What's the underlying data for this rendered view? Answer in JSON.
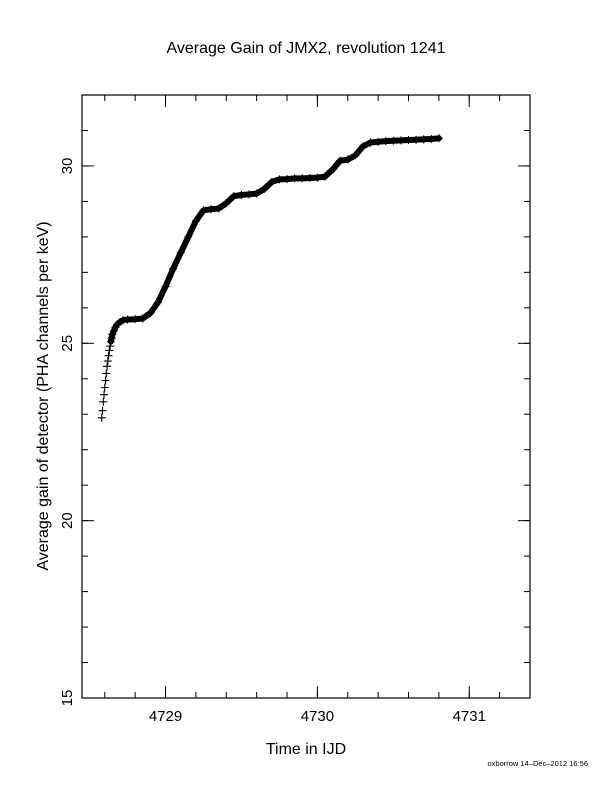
{
  "chart_data": {
    "type": "scatter",
    "title": "Average Gain of JMX2, revolution 1241",
    "xlabel": "Time in IJD",
    "ylabel": "Average gain of detector (PHA channels per keV)",
    "footer": "oxborrow 14–Dec–2012 16:56",
    "xlim": [
      4728.45,
      4731.4
    ],
    "ylim": [
      15,
      32
    ],
    "xticks": [
      4729,
      4730,
      4731
    ],
    "xtick_labels": [
      "4729",
      "4730",
      "4731"
    ],
    "yticks": [
      15,
      20,
      25,
      30
    ],
    "ytick_labels": [
      "15",
      "20",
      "25",
      "30"
    ],
    "x_minor_step": 0.2,
    "y_minor_step": 1,
    "grid": false,
    "marker": "+",
    "color": "#000000",
    "series": [
      {
        "points": [
          [
            4728.58,
            22.9
          ],
          [
            4728.585,
            23.1
          ],
          [
            4728.59,
            23.35
          ],
          [
            4728.595,
            23.55
          ],
          [
            4728.6,
            23.75
          ],
          [
            4728.605,
            23.95
          ],
          [
            4728.61,
            24.15
          ],
          [
            4728.615,
            24.35
          ],
          [
            4728.62,
            24.5
          ],
          [
            4728.625,
            24.65
          ],
          [
            4728.63,
            24.8
          ],
          [
            4728.635,
            24.92
          ],
          [
            4728.64,
            25.05
          ],
          [
            4728.645,
            25.15
          ],
          [
            4728.65,
            25.25
          ],
          [
            4728.66,
            25.35
          ],
          [
            4728.67,
            25.45
          ],
          [
            4728.68,
            25.52
          ],
          [
            4728.7,
            25.6
          ],
          [
            4728.72,
            25.65
          ],
          [
            4728.75,
            25.67
          ],
          [
            4728.8,
            25.68
          ],
          [
            4728.85,
            25.7
          ],
          [
            4728.9,
            25.85
          ],
          [
            4728.95,
            26.15
          ],
          [
            4729.0,
            26.6
          ],
          [
            4729.05,
            27.1
          ],
          [
            4729.1,
            27.55
          ],
          [
            4729.15,
            28.0
          ],
          [
            4729.2,
            28.45
          ],
          [
            4729.25,
            28.75
          ],
          [
            4729.3,
            28.78
          ],
          [
            4729.35,
            28.8
          ],
          [
            4729.4,
            28.95
          ],
          [
            4729.45,
            29.15
          ],
          [
            4729.5,
            29.18
          ],
          [
            4729.55,
            29.2
          ],
          [
            4729.6,
            29.22
          ],
          [
            4729.65,
            29.35
          ],
          [
            4729.7,
            29.55
          ],
          [
            4729.75,
            29.62
          ],
          [
            4729.8,
            29.63
          ],
          [
            4729.85,
            29.65
          ],
          [
            4729.9,
            29.65
          ],
          [
            4729.95,
            29.66
          ],
          [
            4730.0,
            29.67
          ],
          [
            4730.05,
            29.7
          ],
          [
            4730.1,
            29.9
          ],
          [
            4730.15,
            30.15
          ],
          [
            4730.2,
            30.18
          ],
          [
            4730.25,
            30.3
          ],
          [
            4730.3,
            30.55
          ],
          [
            4730.35,
            30.66
          ],
          [
            4730.4,
            30.68
          ],
          [
            4730.45,
            30.7
          ],
          [
            4730.5,
            30.71
          ],
          [
            4730.55,
            30.72
          ],
          [
            4730.6,
            30.73
          ],
          [
            4730.65,
            30.74
          ],
          [
            4730.7,
            30.75
          ],
          [
            4730.75,
            30.76
          ],
          [
            4730.8,
            30.78
          ]
        ]
      }
    ]
  }
}
